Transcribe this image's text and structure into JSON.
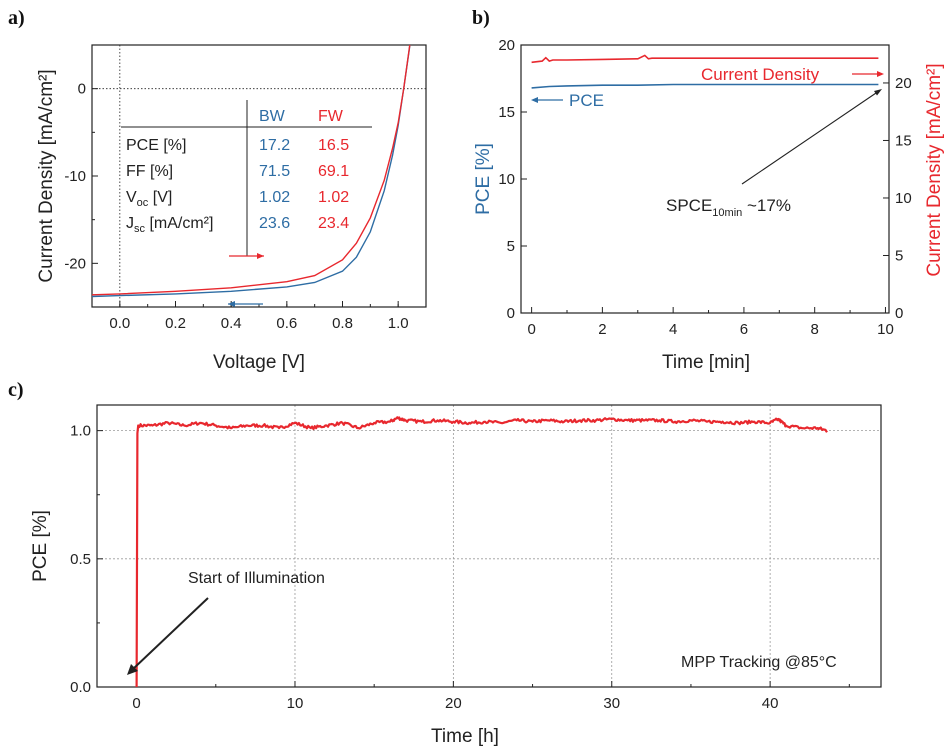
{
  "colors": {
    "blue": "#2e6da4",
    "red": "#e8282e",
    "dark": "#222222"
  },
  "chart_data": [
    {
      "panel_label": "a)",
      "type": "line",
      "xlabel": "Voltage [V]",
      "ylabel": "Current Density [mA/cm²]",
      "xlim": [
        -0.1,
        1.1
      ],
      "ylim": [
        -25,
        5
      ],
      "xticks": [
        "0.0",
        "0.2",
        "0.4",
        "0.6",
        "0.8",
        "1.0"
      ],
      "yticks": [
        "0",
        "-10",
        "-20"
      ],
      "series": [
        {
          "name": "BW",
          "color": "#2e6da4",
          "x": [
            -0.1,
            0.0,
            0.2,
            0.4,
            0.6,
            0.7,
            0.8,
            0.85,
            0.9,
            0.95,
            0.98,
            1.0,
            1.02,
            1.04,
            1.06
          ],
          "y": [
            -23.8,
            -23.7,
            -23.5,
            -23.2,
            -22.7,
            -22.2,
            -20.9,
            -19.3,
            -16.4,
            -11.7,
            -7.6,
            -4.2,
            0.0,
            4.5,
            9.5
          ]
        },
        {
          "name": "FW",
          "color": "#e8282e",
          "x": [
            -0.1,
            0.0,
            0.2,
            0.4,
            0.6,
            0.7,
            0.8,
            0.85,
            0.9,
            0.95,
            0.98,
            1.0,
            1.02,
            1.04,
            1.06
          ],
          "y": [
            -23.6,
            -23.5,
            -23.2,
            -22.8,
            -22.1,
            -21.4,
            -19.6,
            -17.7,
            -14.8,
            -10.5,
            -6.8,
            -3.9,
            0.0,
            4.6,
            9.5
          ]
        }
      ],
      "table": {
        "headers": [
          "",
          "BW",
          "FW"
        ],
        "rows": [
          {
            "label_main": "PCE [%]",
            "label_sub": "",
            "label_tail": "",
            "bw": "17.2",
            "fw": "16.5"
          },
          {
            "label_main": "FF [%]",
            "label_sub": "",
            "label_tail": "",
            "bw": "71.5",
            "fw": "69.1"
          },
          {
            "label_main": "V",
            "label_sub": "oc",
            "label_tail": " [V]",
            "bw": "1.02",
            "fw": "1.02"
          },
          {
            "label_main": "J",
            "label_sub": "sc",
            "label_tail": " [mA/cm²]",
            "bw": "23.6",
            "fw": "23.4"
          }
        ]
      }
    },
    {
      "panel_label": "b)",
      "type": "line",
      "xlabel": "Time [min]",
      "ylabel": "PCE [%]",
      "y2label": "Current Density [mA/cm²]",
      "xlim": [
        -0.3,
        10.1
      ],
      "ylim": [
        0,
        20
      ],
      "y2lim": [
        0,
        23.3
      ],
      "xticks": [
        "0",
        "2",
        "4",
        "6",
        "8",
        "10"
      ],
      "yticks": [
        "0",
        "5",
        "10",
        "15",
        "20"
      ],
      "y2ticks": [
        "0",
        "5",
        "10",
        "15",
        "20"
      ],
      "series": [
        {
          "name": "PCE",
          "color": "#2e6da4",
          "axis": "left",
          "x": [
            0,
            0.5,
            1,
            2,
            3,
            4,
            5,
            6,
            7,
            8,
            9,
            9.8
          ],
          "y": [
            16.8,
            16.9,
            16.95,
            17.0,
            17.0,
            17.05,
            17.05,
            17.05,
            17.05,
            17.05,
            17.05,
            17.05
          ]
        },
        {
          "name": "Current Density",
          "color": "#e8282e",
          "axis": "right",
          "x": [
            0,
            0.3,
            0.4,
            0.5,
            0.6,
            1,
            2,
            3,
            3.2,
            3.3,
            3.4,
            4,
            5,
            6,
            7,
            8,
            9,
            9.8
          ],
          "y": [
            21.8,
            21.9,
            22.2,
            21.9,
            22.0,
            22.0,
            22.05,
            22.1,
            22.4,
            22.1,
            22.15,
            22.15,
            22.15,
            22.15,
            22.15,
            22.15,
            22.15,
            22.15
          ]
        }
      ],
      "annotation": {
        "main": "SPCE",
        "sub": "10min",
        "tail": " ~17%"
      },
      "legend_labels": [
        "PCE",
        "Current Density"
      ]
    },
    {
      "panel_label": "c)",
      "type": "line",
      "xlabel": "Time [h]",
      "ylabel": "PCE [%]",
      "xlim": [
        -2.5,
        47
      ],
      "ylim": [
        0,
        1.1
      ],
      "xticks": [
        "0",
        "10",
        "20",
        "30",
        "40"
      ],
      "yticks": [
        "0.0",
        "0.5",
        "1.0"
      ],
      "grid": true,
      "series": [
        {
          "name": "",
          "color": "#e8282e",
          "x": [
            0,
            0.05,
            0.1,
            1,
            2,
            3,
            4,
            5,
            6,
            7,
            8,
            9,
            10,
            11,
            12,
            13,
            14,
            15,
            16,
            16.5,
            17,
            18,
            19,
            20,
            21,
            22,
            23,
            24,
            25,
            26,
            27,
            28,
            29,
            30,
            31,
            32,
            33,
            34,
            35,
            36,
            37,
            38,
            39,
            40,
            40.5,
            41,
            42,
            43,
            43.6
          ],
          "y": [
            0.0,
            0.99,
            1.02,
            1.02,
            1.03,
            1.02,
            1.03,
            1.02,
            1.01,
            1.02,
            1.02,
            1.01,
            1.03,
            1.01,
            1.02,
            1.03,
            1.01,
            1.03,
            1.035,
            1.05,
            1.04,
            1.035,
            1.04,
            1.035,
            1.03,
            1.035,
            1.03,
            1.04,
            1.035,
            1.04,
            1.035,
            1.04,
            1.04,
            1.045,
            1.04,
            1.04,
            1.04,
            1.035,
            1.04,
            1.035,
            1.035,
            1.03,
            1.035,
            1.03,
            1.045,
            1.02,
            1.01,
            1.01,
            1.0
          ]
        }
      ],
      "annotations": [
        "Start of Illumination",
        "MPP Tracking @85°C"
      ]
    }
  ]
}
